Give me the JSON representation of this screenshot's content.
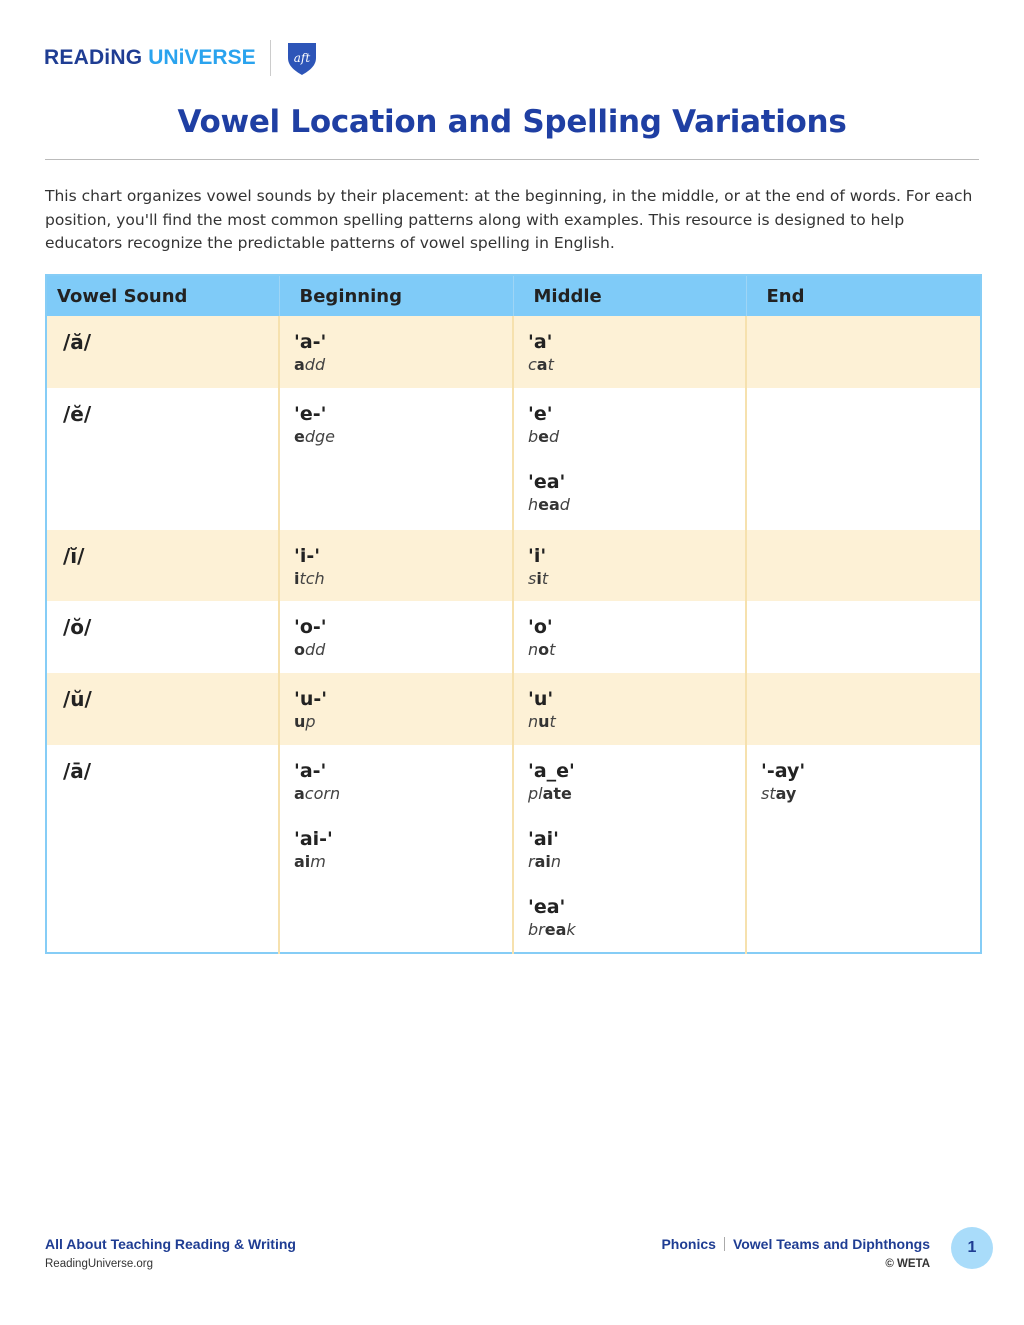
{
  "logo": {
    "word1": "READiNG",
    "word2": "UNiVERSE",
    "partner": "aft"
  },
  "title": "Vowel Location and Spelling Variations",
  "intro": "This chart organizes vowel sounds by their placement: at the beginning, in the middle, or at the end of words. For each position, you'll find the most common spelling patterns along with examples. This resource is designed to help educators recognize the predictable patterns of vowel spelling in English.",
  "colors": {
    "title": "#1f3fa3",
    "header_bg": "#7fcbf8",
    "alt_row_bg": "#fdf1d6",
    "brand_dark": "#1f3d93",
    "brand_light": "#2aa3ee"
  },
  "table": {
    "headers": [
      "Vowel Sound",
      "Beginning",
      "Middle",
      "End"
    ],
    "rows": [
      {
        "sound": "/ă/",
        "beginning": [
          {
            "pattern": "'a-'",
            "example": [
              [
                "a",
                1
              ],
              [
                "dd",
                0
              ]
            ]
          }
        ],
        "middle": [
          {
            "pattern": "'a'",
            "example": [
              [
                "c",
                0
              ],
              [
                "a",
                1
              ],
              [
                "t",
                0
              ]
            ]
          }
        ],
        "end": []
      },
      {
        "sound": "/ĕ/",
        "beginning": [
          {
            "pattern": "'e-'",
            "example": [
              [
                "e",
                1
              ],
              [
                "dge",
                0
              ]
            ]
          }
        ],
        "middle": [
          {
            "pattern": "'e'",
            "example": [
              [
                "b",
                0
              ],
              [
                "e",
                1
              ],
              [
                "d",
                0
              ]
            ]
          },
          {
            "pattern": "'ea'",
            "example": [
              [
                "h",
                0
              ],
              [
                "ea",
                1
              ],
              [
                "d",
                0
              ]
            ]
          }
        ],
        "end": []
      },
      {
        "sound": "/ĭ/",
        "beginning": [
          {
            "pattern": "'i-'",
            "example": [
              [
                "i",
                1
              ],
              [
                "tch",
                0
              ]
            ]
          }
        ],
        "middle": [
          {
            "pattern": "'i'",
            "example": [
              [
                "s",
                0
              ],
              [
                "i",
                1
              ],
              [
                "t",
                0
              ]
            ]
          }
        ],
        "end": []
      },
      {
        "sound": "/ŏ/",
        "beginning": [
          {
            "pattern": "'o-'",
            "example": [
              [
                "o",
                1
              ],
              [
                "dd",
                0
              ]
            ]
          }
        ],
        "middle": [
          {
            "pattern": "'o'",
            "example": [
              [
                "n",
                0
              ],
              [
                "o",
                1
              ],
              [
                "t",
                0
              ]
            ]
          }
        ],
        "end": []
      },
      {
        "sound": "/ŭ/",
        "beginning": [
          {
            "pattern": "'u-'",
            "example": [
              [
                "u",
                1
              ],
              [
                "p",
                0
              ]
            ]
          }
        ],
        "middle": [
          {
            "pattern": "'u'",
            "example": [
              [
                "n",
                0
              ],
              [
                "u",
                1
              ],
              [
                "t",
                0
              ]
            ]
          }
        ],
        "end": []
      },
      {
        "sound": "/ā/",
        "beginning": [
          {
            "pattern": "'a-'",
            "example": [
              [
                "a",
                1
              ],
              [
                "corn",
                0
              ]
            ]
          },
          {
            "pattern": "'ai-'",
            "example": [
              [
                "ai",
                1
              ],
              [
                "m",
                0
              ]
            ]
          }
        ],
        "middle": [
          {
            "pattern": "'a_e'",
            "example": [
              [
                "pl",
                0
              ],
              [
                "ate",
                1
              ]
            ]
          },
          {
            "pattern": "'ai'",
            "example": [
              [
                "r",
                0
              ],
              [
                "ai",
                1
              ],
              [
                "n",
                0
              ]
            ]
          },
          {
            "pattern": "'ea'",
            "example": [
              [
                "br",
                0
              ],
              [
                "ea",
                1
              ],
              [
                "k",
                0
              ]
            ]
          }
        ],
        "end": [
          {
            "pattern": "'-ay'",
            "example": [
              [
                "st",
                0
              ],
              [
                "ay",
                1
              ]
            ]
          }
        ]
      }
    ]
  },
  "footer": {
    "left_title": "All About Teaching Reading & Writing",
    "left_sub": "ReadingUniverse.org",
    "crumb1": "Phonics",
    "crumb2": "Vowel Teams and Diphthongs",
    "copyright": "© WETA",
    "page": "1"
  }
}
